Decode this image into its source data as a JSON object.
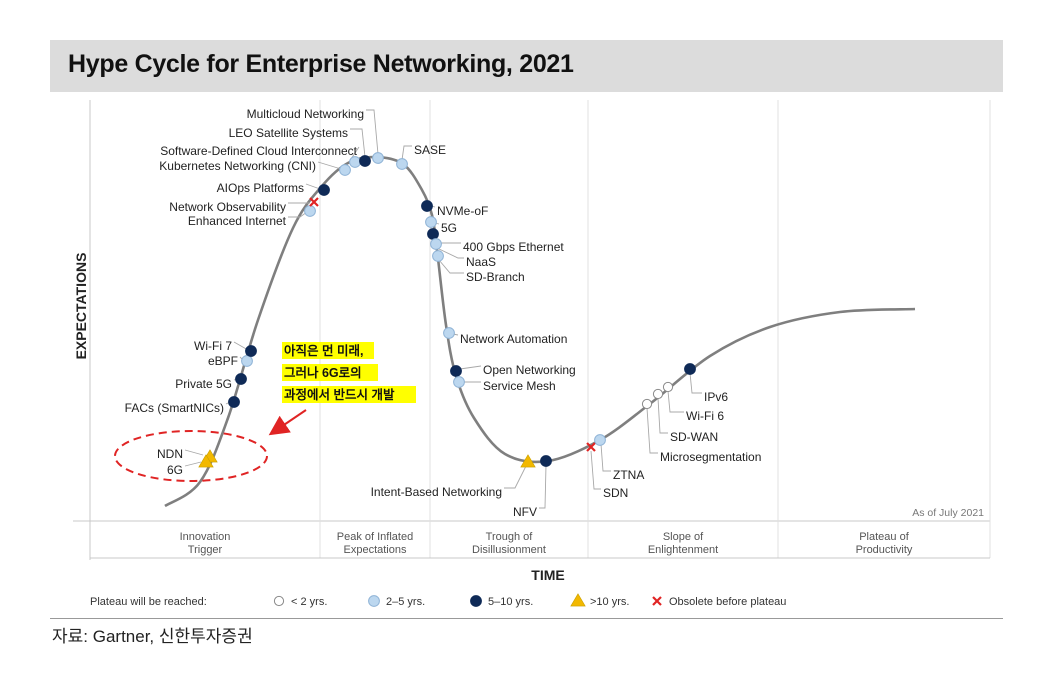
{
  "title": "Hype Cycle for Enterprise Networking, 2021",
  "source": "자료: Gartner, 신한투자증권",
  "chart_data": {
    "type": "scatter",
    "title": "Hype Cycle for Enterprise Networking, 2021",
    "xlabel": "TIME",
    "ylabel": "EXPECTATIONS",
    "as_of": "As of July 2021",
    "phases": [
      "Innovation\nTrigger",
      "Peak of Inflated\nExpectations",
      "Trough of\nDisillusionment",
      "Slope of\nEnlightenment",
      "Plateau of\nProductivity"
    ],
    "legend": {
      "prefix": "Plateau will be reached:",
      "items": [
        {
          "key": "lt2",
          "label": "< 2 yrs."
        },
        {
          "key": "2to5",
          "label": "2–5 yrs."
        },
        {
          "key": "5to10",
          "label": "5–10 yrs."
        },
        {
          "key": "gt10",
          "label": ">10 yrs."
        },
        {
          "key": "obsolete",
          "label": "Obsolete before plateau"
        }
      ]
    },
    "colors": {
      "lt2": "#ffffff",
      "2to5": "#bcd7ef",
      "5to10": "#0f2a57",
      "gt10": "#f2b800",
      "obsolete": "#e02424",
      "curve": "#7f7f7f",
      "annotation_highlight": "#ffff00",
      "annotation_arrow": "#e02424"
    },
    "technologies": [
      {
        "name": "NDN",
        "cat": "gt10"
      },
      {
        "name": "6G",
        "cat": "gt10"
      },
      {
        "name": "FACs (SmartNICs)",
        "cat": "5to10"
      },
      {
        "name": "Private 5G",
        "cat": "5to10"
      },
      {
        "name": "eBPF",
        "cat": "2to5"
      },
      {
        "name": "Wi-Fi 7",
        "cat": "5to10"
      },
      {
        "name": "Enhanced Internet",
        "cat": "2to5"
      },
      {
        "name": "Network Observability",
        "cat": "obsolete"
      },
      {
        "name": "AIOps Platforms",
        "cat": "5to10"
      },
      {
        "name": "Kubernetes Networking (CNI)",
        "cat": "2to5"
      },
      {
        "name": "Software-Defined Cloud Interconnect",
        "cat": "2to5"
      },
      {
        "name": "LEO Satellite Systems",
        "cat": "5to10"
      },
      {
        "name": "Multicloud Networking",
        "cat": "2to5"
      },
      {
        "name": "SASE",
        "cat": "2to5"
      },
      {
        "name": "NVMe-oF",
        "cat": "5to10"
      },
      {
        "name": "5G",
        "cat": "2to5"
      },
      {
        "name": "400 Gbps Ethernet",
        "cat": "5to10"
      },
      {
        "name": "NaaS",
        "cat": "2to5"
      },
      {
        "name": "SD-Branch",
        "cat": "2to5"
      },
      {
        "name": "Network Automation",
        "cat": "2to5"
      },
      {
        "name": "Open Networking",
        "cat": "5to10"
      },
      {
        "name": "Service Mesh",
        "cat": "2to5"
      },
      {
        "name": "Intent-Based Networking",
        "cat": "gt10"
      },
      {
        "name": "NFV",
        "cat": "5to10"
      },
      {
        "name": "SDN",
        "cat": "obsolete"
      },
      {
        "name": "ZTNA",
        "cat": "2to5"
      },
      {
        "name": "Microsegmentation",
        "cat": "lt2"
      },
      {
        "name": "SD-WAN",
        "cat": "lt2"
      },
      {
        "name": "Wi-Fi 6",
        "cat": "lt2"
      },
      {
        "name": "IPv6",
        "cat": "5to10"
      }
    ],
    "annotation": {
      "lines": [
        "아직은 먼 미래,",
        "그러나 6G로의",
        "과정에서 반드시 개발"
      ],
      "highlights": [
        "NDN",
        "6G"
      ]
    }
  }
}
